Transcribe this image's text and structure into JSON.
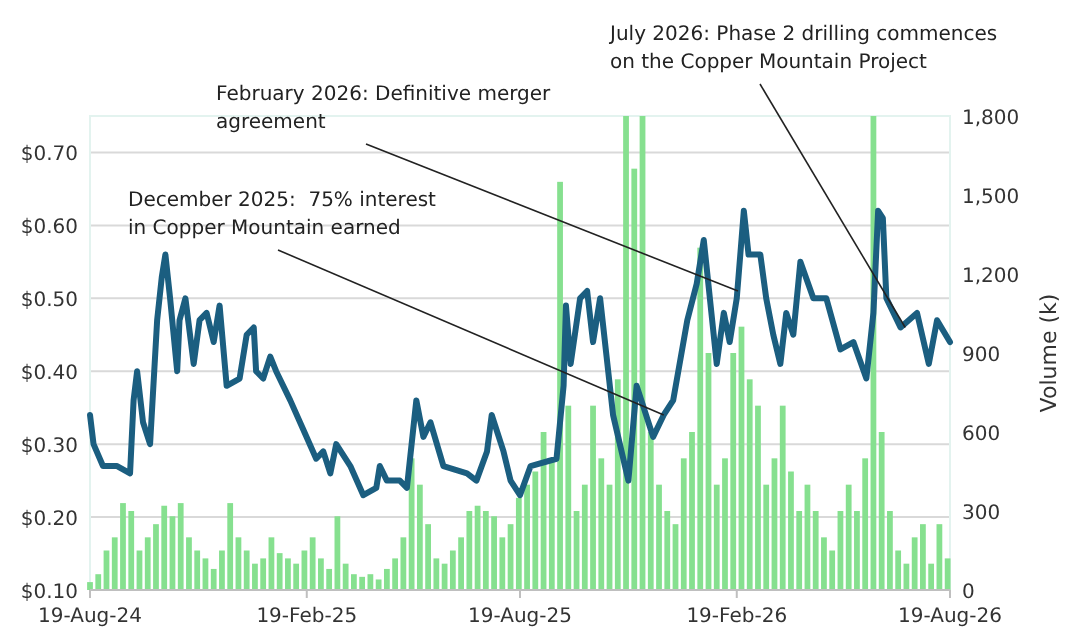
{
  "chart_data": {
    "type": "line",
    "y2label": "Volume (k)",
    "grid": "y",
    "xlim": [
      "2024-08-19",
      "2026-08-19"
    ],
    "xticks": [
      {
        "value": "2024-08-19",
        "label": "19-Aug-24"
      },
      {
        "value": "2025-02-19",
        "label": "19-Feb-25"
      },
      {
        "value": "2025-08-19",
        "label": "19-Aug-25"
      },
      {
        "value": "2026-02-19",
        "label": "19-Feb-26"
      },
      {
        "value": "2026-08-19",
        "label": "19-Aug-26"
      }
    ],
    "ylim": [
      0.1,
      0.75
    ],
    "yticks": [
      {
        "value": 0.1,
        "label": "$0.10"
      },
      {
        "value": 0.2,
        "label": "$0.20"
      },
      {
        "value": 0.3,
        "label": "$0.30"
      },
      {
        "value": 0.4,
        "label": "$0.40"
      },
      {
        "value": 0.5,
        "label": "$0.50"
      },
      {
        "value": 0.6,
        "label": "$0.60"
      },
      {
        "value": 0.7,
        "label": "$0.70"
      }
    ],
    "y2lim": [
      0,
      1800
    ],
    "y2ticks": [
      0,
      300,
      600,
      900,
      {
        "value": 1200,
        "label": "1,200"
      },
      {
        "value": 1500,
        "label": "1,500"
      },
      {
        "value": 1800,
        "label": "1,800"
      }
    ],
    "series": [
      {
        "type": "bar",
        "axis": "y2",
        "color": "#86e08f",
        "x": [
          "2024-08-19",
          "2024-08-26",
          "2024-09-02",
          "2024-09-09",
          "2024-09-16",
          "2024-09-23",
          "2024-09-30",
          "2024-10-07",
          "2024-10-14",
          "2024-10-21",
          "2024-10-28",
          "2024-11-04",
          "2024-11-11",
          "2024-11-18",
          "2024-11-25",
          "2024-12-02",
          "2024-12-09",
          "2024-12-16",
          "2024-12-23",
          "2024-12-30",
          "2025-01-06",
          "2025-01-13",
          "2025-01-20",
          "2025-01-27",
          "2025-02-03",
          "2025-02-10",
          "2025-02-17",
          "2025-02-24",
          "2025-03-03",
          "2025-03-10",
          "2025-03-17",
          "2025-03-24",
          "2025-03-31",
          "2025-04-07",
          "2025-04-14",
          "2025-04-21",
          "2025-04-28",
          "2025-05-05",
          "2025-05-12",
          "2025-05-19",
          "2025-05-26",
          "2025-06-02",
          "2025-06-09",
          "2025-06-16",
          "2025-06-23",
          "2025-06-30",
          "2025-07-07",
          "2025-07-14",
          "2025-07-21",
          "2025-07-28",
          "2025-08-04",
          "2025-08-11",
          "2025-08-18",
          "2025-08-25",
          "2025-09-01",
          "2025-09-08",
          "2025-09-15",
          "2025-09-22",
          "2025-09-29",
          "2025-10-06",
          "2025-10-13",
          "2025-10-20",
          "2025-10-27",
          "2025-11-03",
          "2025-11-10",
          "2025-11-17",
          "2025-11-24",
          "2025-12-01",
          "2025-12-08",
          "2025-12-15",
          "2025-12-22",
          "2025-12-29",
          "2026-01-05",
          "2026-01-12",
          "2026-01-19",
          "2026-01-26",
          "2026-02-02",
          "2026-02-09",
          "2026-02-16",
          "2026-02-23",
          "2026-03-02",
          "2026-03-09",
          "2026-03-16",
          "2026-03-23",
          "2026-03-30",
          "2026-04-06",
          "2026-04-13",
          "2026-04-20",
          "2026-04-27",
          "2026-05-04",
          "2026-05-11",
          "2026-05-18",
          "2026-05-25",
          "2026-06-01",
          "2026-06-08",
          "2026-06-15",
          "2026-06-22",
          "2026-06-29",
          "2026-07-06",
          "2026-07-13",
          "2026-07-20",
          "2026-07-27",
          "2026-08-03",
          "2026-08-10",
          "2026-08-17"
        ],
        "values": [
          30,
          60,
          150,
          200,
          330,
          300,
          150,
          200,
          250,
          320,
          280,
          330,
          200,
          150,
          120,
          80,
          150,
          330,
          200,
          150,
          100,
          120,
          200,
          140,
          120,
          100,
          150,
          200,
          120,
          80,
          280,
          100,
          60,
          50,
          60,
          40,
          80,
          120,
          200,
          500,
          400,
          250,
          120,
          100,
          150,
          200,
          300,
          320,
          300,
          280,
          200,
          250,
          350,
          400,
          450,
          600,
          500,
          1550,
          700,
          300,
          400,
          700,
          500,
          400,
          800,
          1800,
          1600,
          1800,
          600,
          400,
          300,
          250,
          500,
          600,
          1300,
          900,
          400,
          500,
          900,
          1000,
          800,
          700,
          400,
          500,
          700,
          450,
          300,
          400,
          300,
          200,
          150,
          300,
          400,
          300,
          500,
          1800,
          600,
          300,
          150,
          100,
          200,
          250,
          100,
          250,
          120
        ]
      },
      {
        "color": "#1b5e80",
        "x": [
          "2024-08-19",
          "2024-08-22",
          "2024-08-30",
          "2024-09-11",
          "2024-09-22",
          "2024-09-25",
          "2024-09-28",
          "2024-10-03",
          "2024-10-09",
          "2024-10-15",
          "2024-10-19",
          "2024-10-22",
          "2024-10-26",
          "2024-11-01",
          "2024-11-03",
          "2024-11-08",
          "2024-11-15",
          "2024-11-20",
          "2024-11-26",
          "2024-12-02",
          "2024-12-07",
          "2024-12-13",
          "2024-12-24",
          "2024-12-30",
          "2025-01-05",
          "2025-01-07",
          "2025-01-13",
          "2025-01-19",
          "2025-01-24",
          "2025-02-05",
          "2025-02-16",
          "2025-02-27",
          "2025-03-05",
          "2025-03-11",
          "2025-03-16",
          "2025-03-28",
          "2025-04-08",
          "2025-04-19",
          "2025-04-22",
          "2025-04-28",
          "2025-05-09",
          "2025-05-15",
          "2025-05-23",
          "2025-05-29",
          "2025-06-04",
          "2025-06-15",
          "2025-07-05",
          "2025-07-13",
          "2025-07-22",
          "2025-07-26",
          "2025-08-05",
          "2025-08-11",
          "2025-08-19",
          "2025-08-28",
          "2025-09-19",
          "2025-09-25",
          "2025-09-27",
          "2025-10-01",
          "2025-10-09",
          "2025-10-15",
          "2025-10-20",
          "2025-10-26",
          "2025-11-06",
          "2025-11-19",
          "2025-11-26",
          "2025-12-02",
          "2025-12-10",
          "2025-12-19",
          "2025-12-27",
          "2026-01-08",
          "2026-01-16",
          "2026-01-22",
          "2026-02-02",
          "2026-02-08",
          "2026-02-13",
          "2026-02-19",
          "2026-02-25",
          "2026-03-01",
          "2026-03-11",
          "2026-03-16",
          "2026-03-22",
          "2026-03-28",
          "2026-04-02",
          "2026-04-08",
          "2026-04-14",
          "2026-04-25",
          "2026-05-06",
          "2026-05-18",
          "2026-05-29",
          "2026-06-09",
          "2026-06-15",
          "2026-06-19",
          "2026-06-23",
          "2026-06-26",
          "2026-07-08",
          "2026-07-22",
          "2026-08-01",
          "2026-08-08",
          "2026-08-19"
        ],
        "values": [
          0.34,
          0.3,
          0.27,
          0.27,
          0.26,
          0.36,
          0.4,
          0.33,
          0.3,
          0.47,
          0.53,
          0.56,
          0.5,
          0.4,
          0.47,
          0.5,
          0.41,
          0.47,
          0.48,
          0.44,
          0.49,
          0.38,
          0.39,
          0.45,
          0.46,
          0.4,
          0.39,
          0.42,
          0.4,
          0.36,
          0.32,
          0.28,
          0.29,
          0.26,
          0.3,
          0.27,
          0.23,
          0.24,
          0.27,
          0.25,
          0.25,
          0.24,
          0.36,
          0.31,
          0.33,
          0.27,
          0.26,
          0.25,
          0.29,
          0.34,
          0.29,
          0.25,
          0.23,
          0.27,
          0.28,
          0.38,
          0.49,
          0.41,
          0.5,
          0.51,
          0.44,
          0.5,
          0.34,
          0.25,
          0.38,
          0.35,
          0.31,
          0.34,
          0.36,
          0.47,
          0.52,
          0.58,
          0.41,
          0.48,
          0.44,
          0.5,
          0.62,
          0.56,
          0.56,
          0.5,
          0.45,
          0.41,
          0.48,
          0.45,
          0.55,
          0.5,
          0.5,
          0.43,
          0.44,
          0.39,
          0.48,
          0.62,
          0.61,
          0.5,
          0.46,
          0.48,
          0.41,
          0.47,
          0.44
        ]
      }
    ],
    "annotations": [
      {
        "text": "December 2025:  75% interest\nin Copper Mountain earned",
        "x": "2025-12-19",
        "y": 0.34
      },
      {
        "text": "February 2026: Definitive merger\nagreement",
        "x": "2026-02-20",
        "y": 0.51
      },
      {
        "text": "July 2026: Phase 2 drilling commences\non the Copper Mountain Project",
        "x": "2026-07-12",
        "y": 0.46
      }
    ]
  }
}
